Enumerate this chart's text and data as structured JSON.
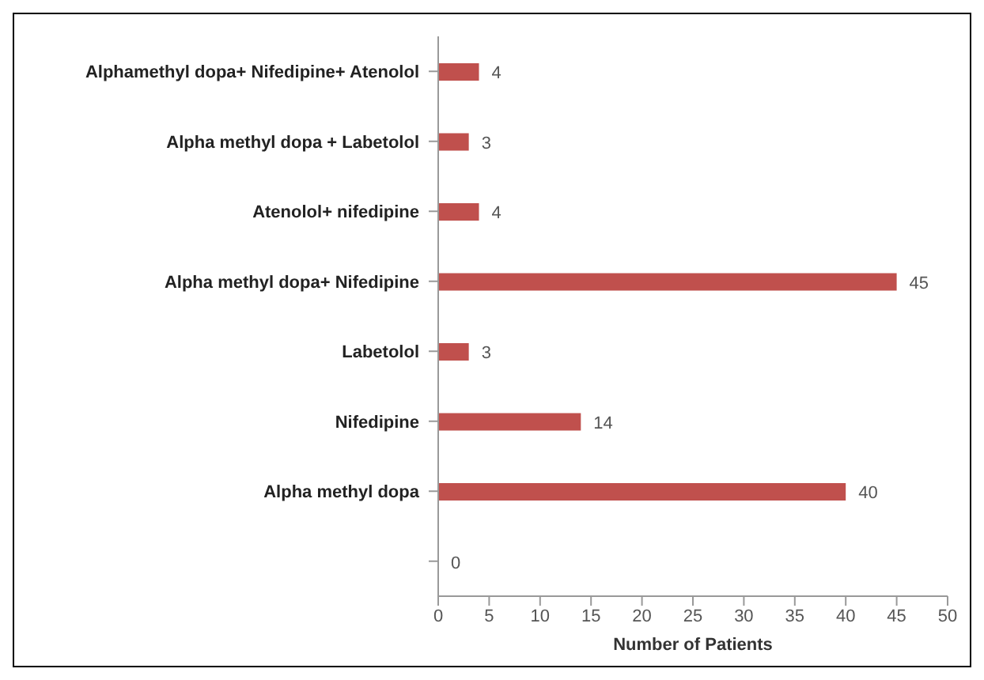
{
  "chart_data": {
    "type": "bar",
    "orientation": "horizontal",
    "xlabel": "Number of Patients",
    "categories": [
      "Alphamethyl dopa+ Nifedipine+ Atenolol",
      "Alpha methyl dopa + Labetolol",
      "Atenolol+ nifedipine",
      "Alpha methyl dopa+ Nifedipine",
      "Labetolol",
      "Nifedipine",
      "Alpha methyl dopa",
      null
    ],
    "values": [
      4,
      3,
      4,
      45,
      3,
      14,
      40,
      0
    ],
    "color": "#c0504d",
    "xlim": [
      0,
      50
    ],
    "xticks": [
      0,
      5,
      10,
      15,
      20,
      25,
      30,
      35,
      40,
      45,
      50
    ],
    "data_labels": true,
    "grid": false
  }
}
